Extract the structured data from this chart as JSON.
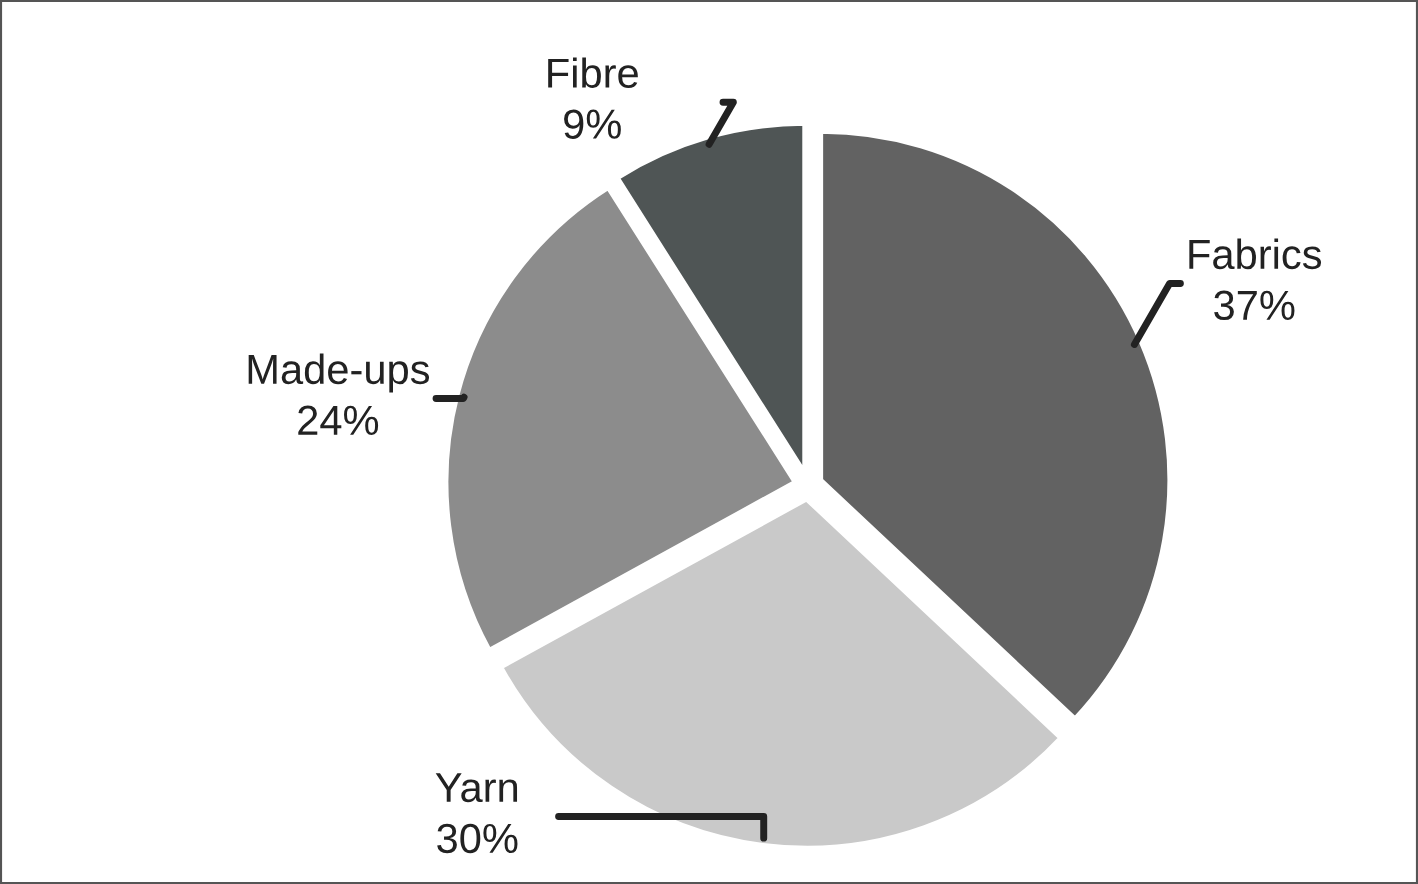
{
  "chart_data": {
    "type": "pie",
    "categories": [
      "Fabrics",
      "Yarn",
      "Made-ups",
      "Fibre"
    ],
    "values": [
      37,
      30,
      24,
      9
    ],
    "value_labels": [
      "37%",
      "30%",
      "24%",
      "9%"
    ],
    "colors": [
      "#626262",
      "#c9c9c9",
      "#8c8c8c",
      "#4f5555"
    ],
    "legend": false
  }
}
